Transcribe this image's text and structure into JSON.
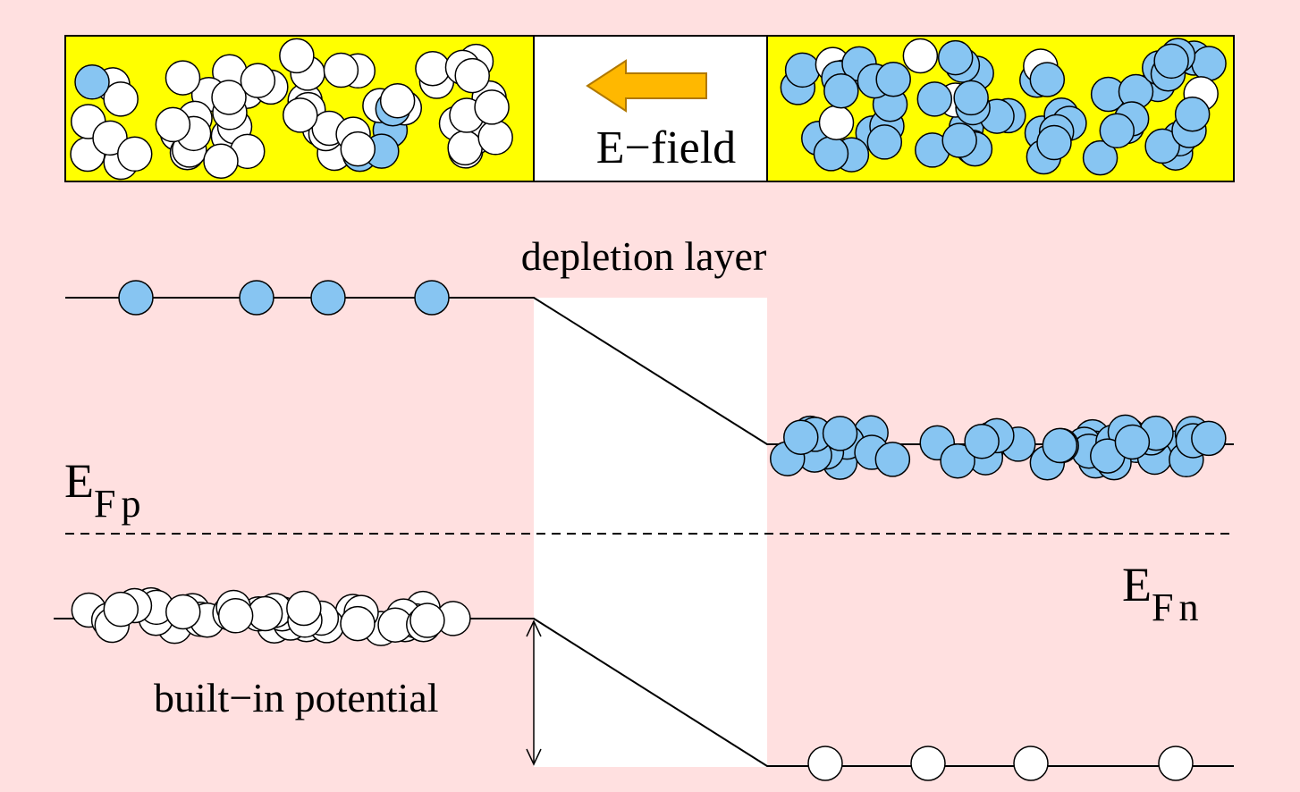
{
  "top_bar": {
    "field_label": "E−field"
  },
  "labels": {
    "depletion": "depletion layer",
    "fermi_p": {
      "main": "E",
      "sub": "Fp"
    },
    "fermi_n": {
      "main": "E",
      "sub": "Fn"
    },
    "built_in": "built−in potential"
  }
}
